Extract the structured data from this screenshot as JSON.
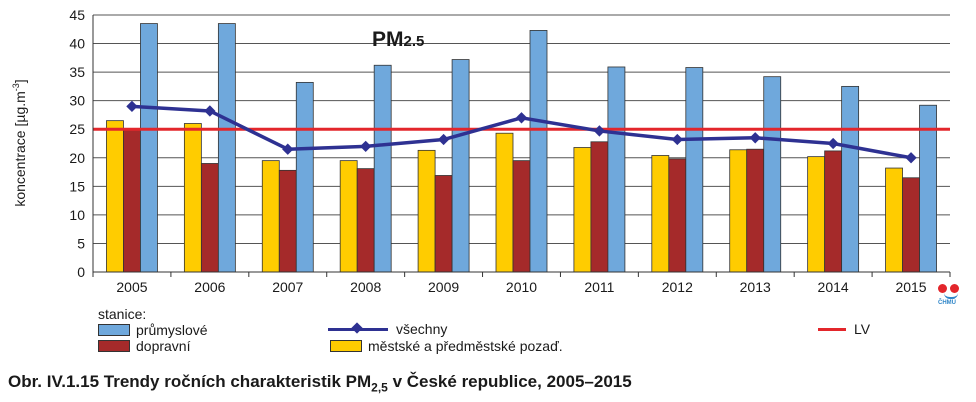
{
  "chart_data": {
    "type": "bar",
    "title": "PM2.5",
    "title_main": "PM",
    "title_sub": "2.5",
    "ylabel": "koncentrace [µg.m⁻³]",
    "ylabel_main": "koncentrace [µg.m",
    "ylabel_sup": "-3",
    "ylabel_end": "]",
    "ylim": [
      0,
      45
    ],
    "yticks": [
      0,
      5,
      10,
      15,
      20,
      25,
      30,
      35,
      40,
      45
    ],
    "grid": true,
    "categories": [
      "2005",
      "2006",
      "2007",
      "2008",
      "2009",
      "2010",
      "2011",
      "2012",
      "2013",
      "2014",
      "2015"
    ],
    "series": [
      {
        "name": "městské a předměstské pozaď.",
        "color": "#ffcc00",
        "values": [
          26.5,
          26.0,
          19.5,
          19.5,
          21.3,
          24.3,
          21.8,
          20.4,
          21.4,
          20.2,
          18.2
        ]
      },
      {
        "name": "dopravní",
        "color": "#a52a2a",
        "values": [
          25.0,
          19.0,
          17.8,
          18.1,
          16.9,
          19.5,
          22.8,
          19.8,
          21.5,
          21.2,
          16.5
        ]
      },
      {
        "name": "průmyslové",
        "color": "#6fa8dc",
        "values": [
          43.5,
          43.5,
          33.2,
          36.2,
          37.2,
          42.3,
          35.9,
          35.8,
          34.2,
          32.5,
          29.2
        ]
      }
    ],
    "line_series": {
      "name": "všechny",
      "color": "#2e3192",
      "values": [
        29.0,
        28.2,
        21.5,
        22.0,
        23.2,
        27.0,
        24.7,
        23.2,
        23.5,
        22.5,
        20.0
      ]
    },
    "reference_line": {
      "name": "LV",
      "value": 25,
      "color": "#e3262b"
    }
  },
  "legend": {
    "heading": "stanice:",
    "industrial": "průmyslové",
    "traffic": "dopravní",
    "all": "všechny",
    "urban": "městské a předměstské pozaď.",
    "lv": "LV"
  },
  "caption": {
    "prefix": "Obr. IV.1.15  Trendy ročních charakteristik PM",
    "sub": "2,5",
    "suffix": " v České republice, 2005–2015"
  },
  "logo": {
    "text": "ČHMÚ"
  }
}
